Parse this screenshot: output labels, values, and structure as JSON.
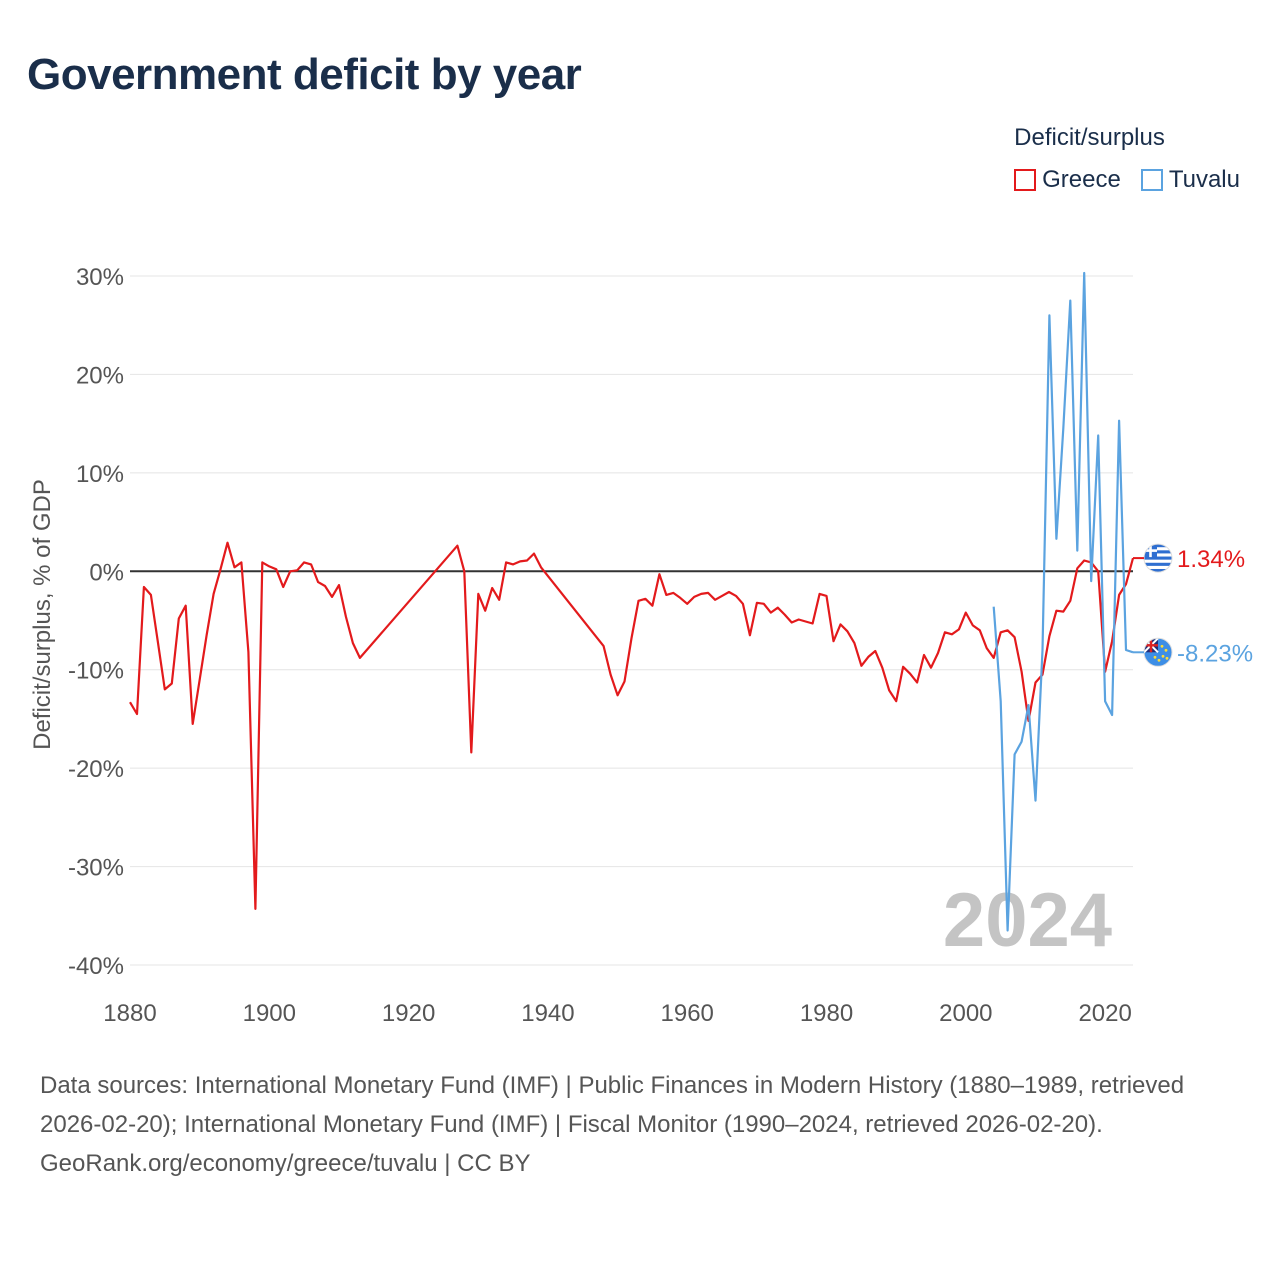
{
  "title": "Government deficit by year",
  "legend": {
    "title": "Deficit/surplus",
    "items": [
      {
        "name": "Greece",
        "color": "#e31a1c"
      },
      {
        "name": "Tuvalu",
        "color": "#5ba3e0"
      }
    ]
  },
  "chart_data": {
    "type": "line",
    "ylabel": "Deficit/surplus, % of GDP",
    "xlabel": "",
    "xlim": [
      1880,
      2024
    ],
    "ylim": [
      -40,
      30
    ],
    "x_ticks": [
      1880,
      1900,
      1920,
      1940,
      1960,
      1980,
      2000,
      2020
    ],
    "y_ticks": [
      30,
      20,
      10,
      0,
      -10,
      -20,
      -30,
      -40
    ],
    "y_tick_labels": [
      "30%",
      "20%",
      "10%",
      "0%",
      "-10%",
      "-20%",
      "-30%",
      "-40%"
    ],
    "year_watermark": "2024",
    "series": [
      {
        "name": "Greece",
        "color": "#e31a1c",
        "end_label": "1.34%",
        "flag": "greece-flag",
        "gaps": [
          [
            1912,
            1927
          ],
          [
            1938,
            1948
          ]
        ],
        "points": [
          [
            1880,
            -13.3
          ],
          [
            1881,
            -14.5
          ],
          [
            1882,
            -1.6
          ],
          [
            1883,
            -2.4
          ],
          [
            1884,
            -7.2
          ],
          [
            1885,
            -12.0
          ],
          [
            1886,
            -11.4
          ],
          [
            1887,
            -4.8
          ],
          [
            1888,
            -3.5
          ],
          [
            1889,
            -15.5
          ],
          [
            1890,
            -11.0
          ],
          [
            1891,
            -6.5
          ],
          [
            1892,
            -2.3
          ],
          [
            1893,
            0.2
          ],
          [
            1894,
            2.9
          ],
          [
            1895,
            0.4
          ],
          [
            1896,
            0.9
          ],
          [
            1897,
            -8.2
          ],
          [
            1898,
            -34.3
          ],
          [
            1899,
            0.9
          ],
          [
            1900,
            0.5
          ],
          [
            1901,
            0.2
          ],
          [
            1902,
            -1.6
          ],
          [
            1903,
            0.0
          ],
          [
            1904,
            0.1
          ],
          [
            1905,
            0.9
          ],
          [
            1906,
            0.7
          ],
          [
            1907,
            -1.1
          ],
          [
            1908,
            -1.5
          ],
          [
            1909,
            -2.6
          ],
          [
            1910,
            -1.4
          ],
          [
            1911,
            -4.6
          ],
          [
            1912,
            -7.3
          ],
          [
            1913,
            -8.8
          ],
          [
            1927,
            2.6
          ],
          [
            1928,
            0.0
          ],
          [
            1929,
            -18.4
          ],
          [
            1930,
            -2.3
          ],
          [
            1931,
            -4.0
          ],
          [
            1932,
            -1.7
          ],
          [
            1933,
            -2.9
          ],
          [
            1934,
            0.9
          ],
          [
            1935,
            0.7
          ],
          [
            1936,
            1.0
          ],
          [
            1937,
            1.1
          ],
          [
            1938,
            1.8
          ],
          [
            1939,
            0.4
          ],
          [
            1948,
            -7.6
          ],
          [
            1949,
            -10.5
          ],
          [
            1950,
            -12.6
          ],
          [
            1951,
            -11.2
          ],
          [
            1952,
            -6.8
          ],
          [
            1953,
            -3.0
          ],
          [
            1954,
            -2.8
          ],
          [
            1955,
            -3.5
          ],
          [
            1956,
            -0.3
          ],
          [
            1957,
            -2.4
          ],
          [
            1958,
            -2.2
          ],
          [
            1959,
            -2.7
          ],
          [
            1960,
            -3.3
          ],
          [
            1961,
            -2.6
          ],
          [
            1962,
            -2.3
          ],
          [
            1963,
            -2.2
          ],
          [
            1964,
            -2.9
          ],
          [
            1965,
            -2.5
          ],
          [
            1966,
            -2.1
          ],
          [
            1967,
            -2.5
          ],
          [
            1968,
            -3.3
          ],
          [
            1969,
            -6.5
          ],
          [
            1970,
            -3.2
          ],
          [
            1971,
            -3.3
          ],
          [
            1972,
            -4.2
          ],
          [
            1973,
            -3.7
          ],
          [
            1974,
            -4.4
          ],
          [
            1975,
            -5.2
          ],
          [
            1976,
            -4.9
          ],
          [
            1977,
            -5.1
          ],
          [
            1978,
            -5.3
          ],
          [
            1979,
            -2.3
          ],
          [
            1980,
            -2.5
          ],
          [
            1981,
            -7.1
          ],
          [
            1982,
            -5.4
          ],
          [
            1983,
            -6.1
          ],
          [
            1984,
            -7.3
          ],
          [
            1985,
            -9.6
          ],
          [
            1986,
            -8.7
          ],
          [
            1987,
            -8.1
          ],
          [
            1988,
            -9.8
          ],
          [
            1989,
            -12.1
          ],
          [
            1990,
            -13.2
          ],
          [
            1991,
            -9.7
          ],
          [
            1992,
            -10.4
          ],
          [
            1993,
            -11.3
          ],
          [
            1994,
            -8.5
          ],
          [
            1995,
            -9.8
          ],
          [
            1996,
            -8.3
          ],
          [
            1997,
            -6.2
          ],
          [
            1998,
            -6.4
          ],
          [
            1999,
            -5.9
          ],
          [
            2000,
            -4.2
          ],
          [
            2001,
            -5.5
          ],
          [
            2002,
            -6.0
          ],
          [
            2003,
            -7.8
          ],
          [
            2004,
            -8.8
          ],
          [
            2005,
            -6.2
          ],
          [
            2006,
            -6.0
          ],
          [
            2007,
            -6.7
          ],
          [
            2008,
            -10.2
          ],
          [
            2009,
            -15.2
          ],
          [
            2010,
            -11.3
          ],
          [
            2011,
            -10.5
          ],
          [
            2012,
            -6.6
          ],
          [
            2013,
            -4.0
          ],
          [
            2014,
            -4.1
          ],
          [
            2015,
            -3.0
          ],
          [
            2016,
            0.3
          ],
          [
            2017,
            1.1
          ],
          [
            2018,
            0.9
          ],
          [
            2019,
            0.0
          ],
          [
            2020,
            -10.2
          ],
          [
            2021,
            -7.1
          ],
          [
            2022,
            -2.4
          ],
          [
            2023,
            -1.3
          ],
          [
            2024,
            1.34
          ]
        ]
      },
      {
        "name": "Tuvalu",
        "color": "#5ba3e0",
        "end_label": "-8.23%",
        "flag": "tuvalu-flag",
        "gaps": [],
        "points": [
          [
            2004,
            -3.6
          ],
          [
            2005,
            -13.2
          ],
          [
            2006,
            -36.5
          ],
          [
            2007,
            -18.6
          ],
          [
            2008,
            -17.3
          ],
          [
            2009,
            -13.6
          ],
          [
            2010,
            -23.3
          ],
          [
            2011,
            -8.0
          ],
          [
            2012,
            26.0
          ],
          [
            2013,
            3.3
          ],
          [
            2014,
            14.5
          ],
          [
            2015,
            27.5
          ],
          [
            2016,
            2.1
          ],
          [
            2017,
            30.3
          ],
          [
            2018,
            -1.0
          ],
          [
            2019,
            13.8
          ],
          [
            2020,
            -13.2
          ],
          [
            2021,
            -14.6
          ],
          [
            2022,
            15.3
          ],
          [
            2023,
            -8.0
          ],
          [
            2024,
            -8.23
          ]
        ]
      }
    ]
  },
  "footer": {
    "sources": "Data sources: International Monetary Fund (IMF) | Public Finances in Modern History (1880–1989, retrieved 2026-02-20); International Monetary Fund (IMF) | Fiscal Monitor (1990–2024, retrieved 2026-02-20).",
    "credit": "GeoRank.org/economy/greece/tuvalu | CC BY"
  }
}
